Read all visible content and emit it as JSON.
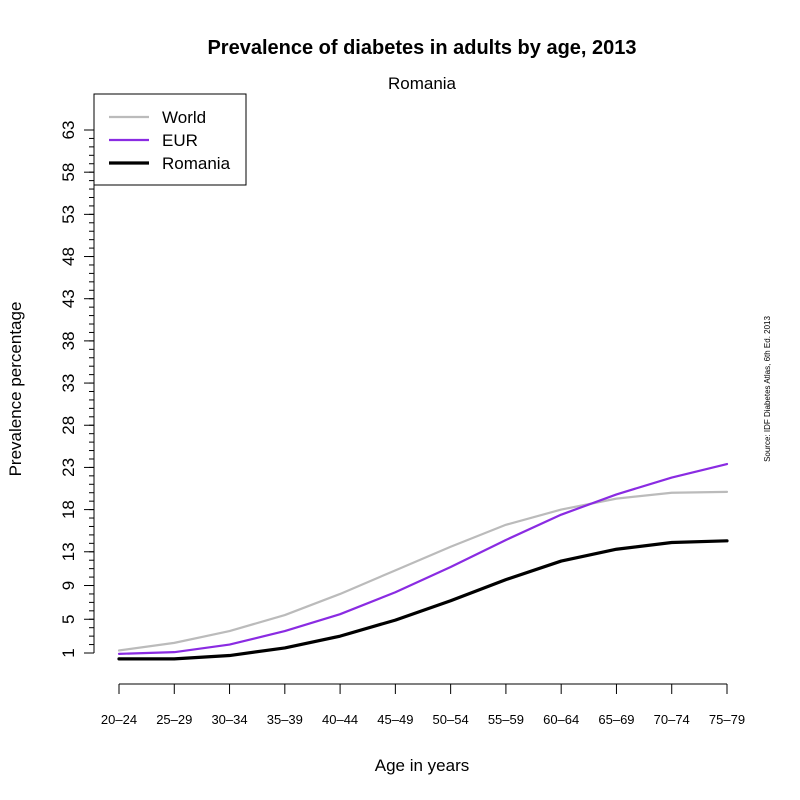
{
  "chart_data": {
    "type": "line",
    "title": "Prevalence of diabetes in adults by age, 2013",
    "subtitle": "Romania",
    "xlabel": "Age in years",
    "ylabel": "Prevalence percentage",
    "source": "Source: IDF Diabetes Atlas, 6th Ed. 2013",
    "categories": [
      "20–24",
      "25–29",
      "30–34",
      "35–39",
      "40–44",
      "45–49",
      "50–54",
      "55–59",
      "60–64",
      "65–69",
      "70–74",
      "75–79"
    ],
    "yticks": [
      1,
      5,
      9,
      13,
      18,
      23,
      28,
      33,
      38,
      43,
      48,
      53,
      58,
      63
    ],
    "ylim": [
      1,
      63
    ],
    "grid": false,
    "legend_position": "top-left",
    "series": [
      {
        "name": "World",
        "color": "#bbbbbb",
        "values": [
          1.3,
          2.2,
          3.6,
          5.5,
          8.0,
          10.8,
          13.6,
          16.2,
          18.0,
          19.3,
          20.0,
          20.1
        ]
      },
      {
        "name": "EUR",
        "color": "#8a2be2",
        "values": [
          0.9,
          1.1,
          2.0,
          3.6,
          5.6,
          8.2,
          11.2,
          14.4,
          17.4,
          19.8,
          21.8,
          23.4
        ]
      },
      {
        "name": "Romania",
        "color": "#000000",
        "values": [
          0.3,
          0.3,
          0.7,
          1.6,
          3.0,
          4.9,
          7.2,
          9.7,
          11.9,
          13.3,
          14.1,
          14.3
        ]
      }
    ]
  }
}
